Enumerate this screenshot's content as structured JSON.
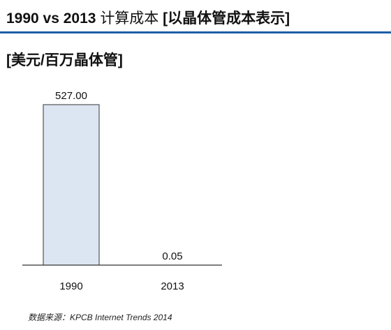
{
  "header": {
    "title_latin": "1990 vs 2013",
    "title_cn": "计算成本",
    "title_bracket": "[以晶体管成本表示]",
    "accent_color": "#1f5fa8"
  },
  "unit_label": "[美元/百万晶体管]",
  "source": "数据来源：KPCB Internet Trends 2014",
  "chart_data": {
    "type": "bar",
    "categories": [
      "1990",
      "2013"
    ],
    "values": [
      527.0,
      0.05
    ],
    "value_labels": [
      "527.00",
      "0.05"
    ],
    "bar_fill": "#dce6f2",
    "bar_stroke": "#333333",
    "ylim": [
      0,
      527
    ],
    "grid": false,
    "title": "",
    "xlabel": "",
    "ylabel": ""
  }
}
